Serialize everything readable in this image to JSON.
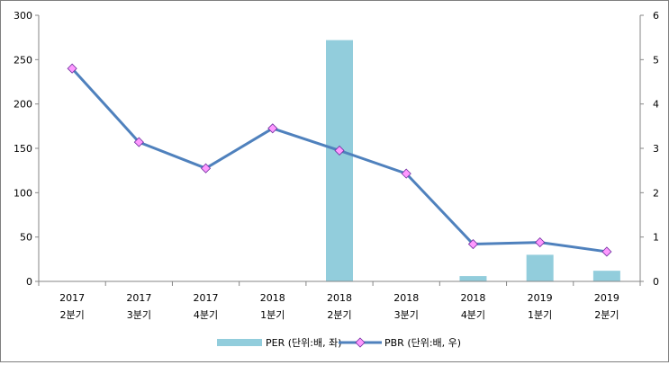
{
  "chart_data": {
    "type": "bar+line",
    "categories": [
      [
        "2017",
        "2분기"
      ],
      [
        "2017",
        "3분기"
      ],
      [
        "2017",
        "4분기"
      ],
      [
        "2018",
        "1분기"
      ],
      [
        "2018",
        "2분기"
      ],
      [
        "2018",
        "3분기"
      ],
      [
        "2018",
        "4분기"
      ],
      [
        "2019",
        "1분기"
      ],
      [
        "2019",
        "2분기"
      ]
    ],
    "series": [
      {
        "name": "PER (단위:배, 좌)",
        "type": "bar",
        "axis": "left",
        "color": "#92cddc",
        "values": [
          null,
          null,
          null,
          null,
          272,
          null,
          6,
          30,
          12
        ]
      },
      {
        "name": "PBR (단위:배, 우)",
        "type": "line",
        "axis": "right",
        "color": "#4f81bd",
        "marker_color": "#ff99ff",
        "values": [
          4.8,
          3.14,
          2.55,
          3.45,
          2.95,
          2.43,
          0.84,
          0.88,
          0.67
        ]
      }
    ],
    "y_left": {
      "min": 0,
      "max": 300,
      "ticks": [
        "0",
        "50",
        "100",
        "150",
        "200",
        "250",
        "300"
      ]
    },
    "y_right": {
      "min": 0,
      "max": 6,
      "ticks": [
        "0",
        "1",
        "2",
        "3",
        "4",
        "5",
        "6"
      ]
    },
    "grid": false,
    "legend_position": "bottom"
  }
}
